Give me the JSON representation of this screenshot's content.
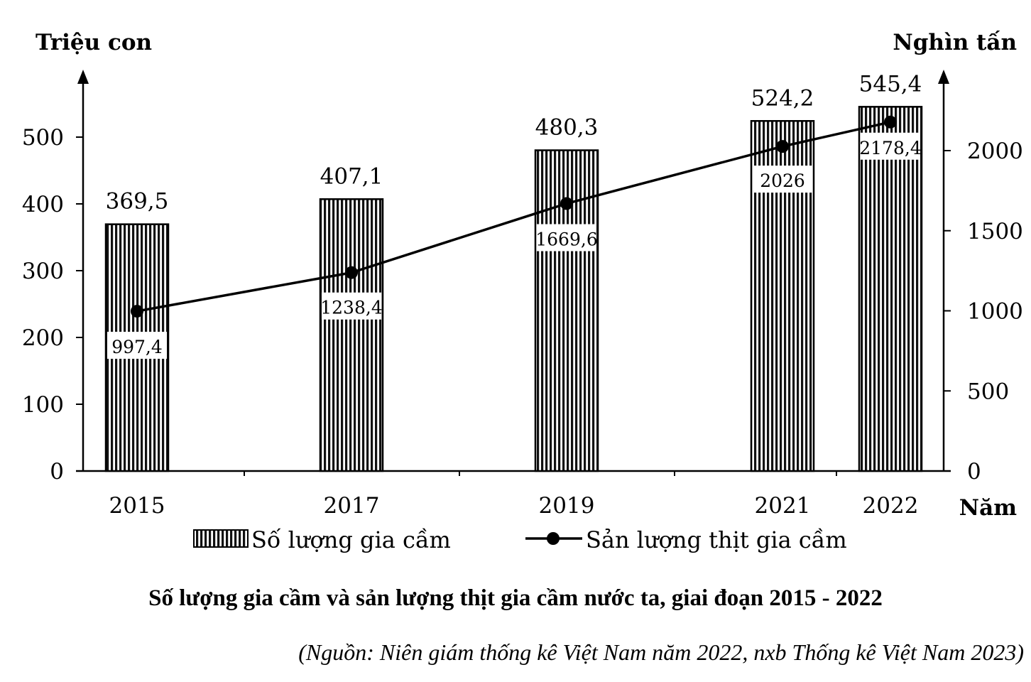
{
  "chart_data": {
    "type": "bar",
    "title": "Số lượng gia cầm và sản lượng thịt gia cầm nước ta, giai đoạn 2015 - 2022",
    "source": "(Nguồn: Niên giám thống kê Việt Nam năm 2022, nxb Thống kê Việt Nam 2023)",
    "xlabel": "Năm",
    "ylabel_left": "Triệu con",
    "ylabel_right": "Nghìn tấn",
    "categories": [
      "2015",
      "2017",
      "2019",
      "2021",
      "2022"
    ],
    "series": [
      {
        "name": "Số lượng gia cầm",
        "type": "bar",
        "axis": "left",
        "values": [
          369.5,
          407.1,
          480.3,
          524.2,
          545.4
        ],
        "labels": [
          "369,5",
          "407,1",
          "480,3",
          "524,2",
          "545,4"
        ]
      },
      {
        "name": "Sản lượng thịt gia cầm",
        "type": "line",
        "axis": "right",
        "values": [
          997.4,
          1238.4,
          1669.6,
          2026,
          2178.4
        ],
        "labels": [
          "997,4",
          "1238,4",
          "1669,6",
          "2026",
          "2178,4"
        ]
      }
    ],
    "y_left": {
      "ylim": [
        0,
        500
      ],
      "ticks": [
        0,
        100,
        200,
        300,
        400,
        500
      ]
    },
    "y_right": {
      "ylim": [
        0,
        2000
      ],
      "ticks": [
        0,
        500,
        1000,
        1500,
        2000
      ]
    },
    "grid": false,
    "legend": "bottom"
  }
}
